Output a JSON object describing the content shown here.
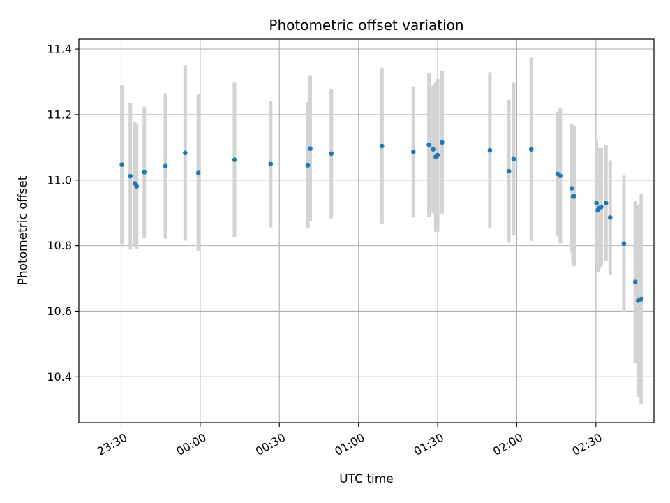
{
  "chart_data": {
    "type": "scatter",
    "title": "Photometric offset variation",
    "xlabel": "UTC time",
    "ylabel": "Photometric offset",
    "x_unit": "minutes after midnight UTC (negative = before)",
    "xlim": [
      -46,
      172
    ],
    "ylim": [
      10.26,
      11.43
    ],
    "x_ticks": [
      {
        "value": -30,
        "label": "23:30"
      },
      {
        "value": 0,
        "label": "00:00"
      },
      {
        "value": 30,
        "label": "00:30"
      },
      {
        "value": 60,
        "label": "01:00"
      },
      {
        "value": 90,
        "label": "01:30"
      },
      {
        "value": 120,
        "label": "02:00"
      },
      {
        "value": 150,
        "label": "02:30"
      }
    ],
    "y_ticks": [
      {
        "value": 10.4,
        "label": "10.4"
      },
      {
        "value": 10.6,
        "label": "10.6"
      },
      {
        "value": 10.8,
        "label": "10.8"
      },
      {
        "value": 11.0,
        "label": "11.0"
      },
      {
        "value": 11.2,
        "label": "11.2"
      },
      {
        "value": 11.4,
        "label": "11.4"
      }
    ],
    "grid": true,
    "colors": {
      "points": "#1f77b4",
      "errorbars": "#d3d3d3",
      "grid": "#b0b0b0"
    },
    "points": [
      {
        "x": -29.7,
        "y": 11.047,
        "err": 0.242
      },
      {
        "x": -26.5,
        "y": 11.012,
        "err": 0.224
      },
      {
        "x": -24.8,
        "y": 10.99,
        "err": 0.187
      },
      {
        "x": -24.1,
        "y": 10.981,
        "err": 0.19
      },
      {
        "x": -21.2,
        "y": 11.024,
        "err": 0.2
      },
      {
        "x": -13.2,
        "y": 11.043,
        "err": 0.222
      },
      {
        "x": -5.7,
        "y": 11.083,
        "err": 0.268
      },
      {
        "x": -0.7,
        "y": 11.022,
        "err": 0.24
      },
      {
        "x": 13.0,
        "y": 11.062,
        "err": 0.235
      },
      {
        "x": 26.7,
        "y": 11.049,
        "err": 0.193
      },
      {
        "x": 40.8,
        "y": 11.045,
        "err": 0.193
      },
      {
        "x": 41.7,
        "y": 11.096,
        "err": 0.222
      },
      {
        "x": 49.7,
        "y": 11.081,
        "err": 0.198
      },
      {
        "x": 68.9,
        "y": 11.104,
        "err": 0.236
      },
      {
        "x": 80.8,
        "y": 11.086,
        "err": 0.2
      },
      {
        "x": 86.7,
        "y": 11.108,
        "err": 0.22
      },
      {
        "x": 88.3,
        "y": 11.094,
        "err": 0.195
      },
      {
        "x": 89.3,
        "y": 11.071,
        "err": 0.229
      },
      {
        "x": 90.0,
        "y": 11.076,
        "err": 0.233
      },
      {
        "x": 91.7,
        "y": 11.115,
        "err": 0.219
      },
      {
        "x": 109.8,
        "y": 11.091,
        "err": 0.238
      },
      {
        "x": 117.0,
        "y": 11.027,
        "err": 0.218
      },
      {
        "x": 118.8,
        "y": 11.064,
        "err": 0.233
      },
      {
        "x": 125.5,
        "y": 11.094,
        "err": 0.28
      },
      {
        "x": 135.5,
        "y": 11.019,
        "err": 0.19
      },
      {
        "x": 136.5,
        "y": 11.013,
        "err": 0.206
      },
      {
        "x": 140.8,
        "y": 10.975,
        "err": 0.196
      },
      {
        "x": 141.3,
        "y": 10.95,
        "err": 0.202
      },
      {
        "x": 141.8,
        "y": 10.95,
        "err": 0.213
      },
      {
        "x": 150.2,
        "y": 10.93,
        "err": 0.19
      },
      {
        "x": 150.7,
        "y": 10.908,
        "err": 0.19
      },
      {
        "x": 151.3,
        "y": 10.915,
        "err": 0.183
      },
      {
        "x": 152.0,
        "y": 10.918,
        "err": 0.18
      },
      {
        "x": 153.8,
        "y": 10.93,
        "err": 0.176
      },
      {
        "x": 155.4,
        "y": 10.886,
        "err": 0.174
      },
      {
        "x": 160.6,
        "y": 10.806,
        "err": 0.208
      },
      {
        "x": 164.9,
        "y": 10.689,
        "err": 0.247
      },
      {
        "x": 166.0,
        "y": 10.632,
        "err": 0.293
      },
      {
        "x": 166.6,
        "y": 10.634,
        "err": 0.292
      },
      {
        "x": 167.2,
        "y": 10.637,
        "err": 0.32
      }
    ]
  }
}
